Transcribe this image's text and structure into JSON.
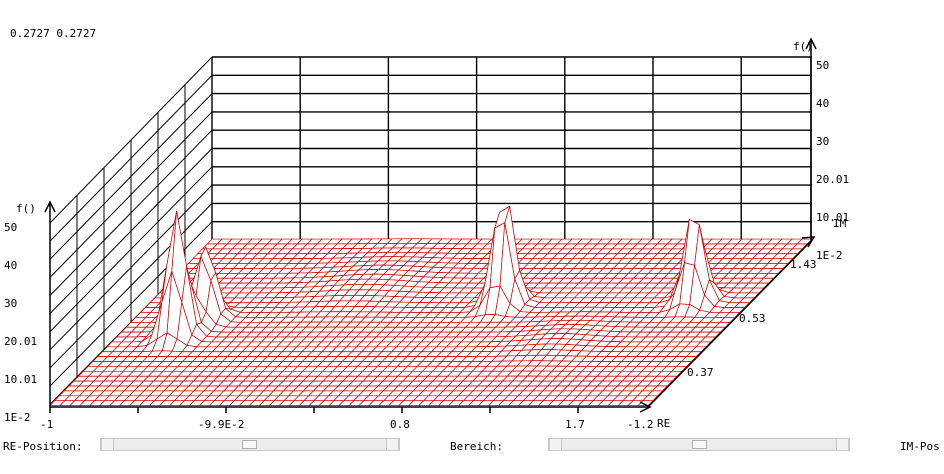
{
  "coords_text": "0.2727 0.2727",
  "labels": {
    "f_left": "f()",
    "f_right": "f()",
    "re_axis": "RE",
    "im_axis": "IM"
  },
  "left_ticks": [
    "50",
    "40",
    "30",
    "20.01",
    "10.01",
    "1E-2"
  ],
  "right_ticks": [
    "50",
    "40",
    "30",
    "20.01",
    "10.01",
    "1E-2"
  ],
  "re_ticks": [
    "-1",
    "-9.9E-2",
    "0.8",
    "1.7",
    "-1.2"
  ],
  "im_ticks": [
    "1.43",
    "0.53",
    "0.37"
  ],
  "controls": {
    "re_position_label": "RE-Position:",
    "range_label": "Bereich:",
    "im_position_label": "IM-Pos"
  },
  "colors": {
    "mesh": "#cc0000",
    "fill": "#ffffff",
    "axis": "#000000"
  },
  "surface": {
    "z_max": 50,
    "peaks": [
      {
        "re": -0.73,
        "im": 0.6,
        "height": 42
      },
      {
        "re": -0.68,
        "im": 0.75,
        "height": 27
      },
      {
        "re": 0.6,
        "im": 0.88,
        "height": 42
      },
      {
        "re": 1.45,
        "im": 0.9,
        "height": 34
      }
    ]
  }
}
